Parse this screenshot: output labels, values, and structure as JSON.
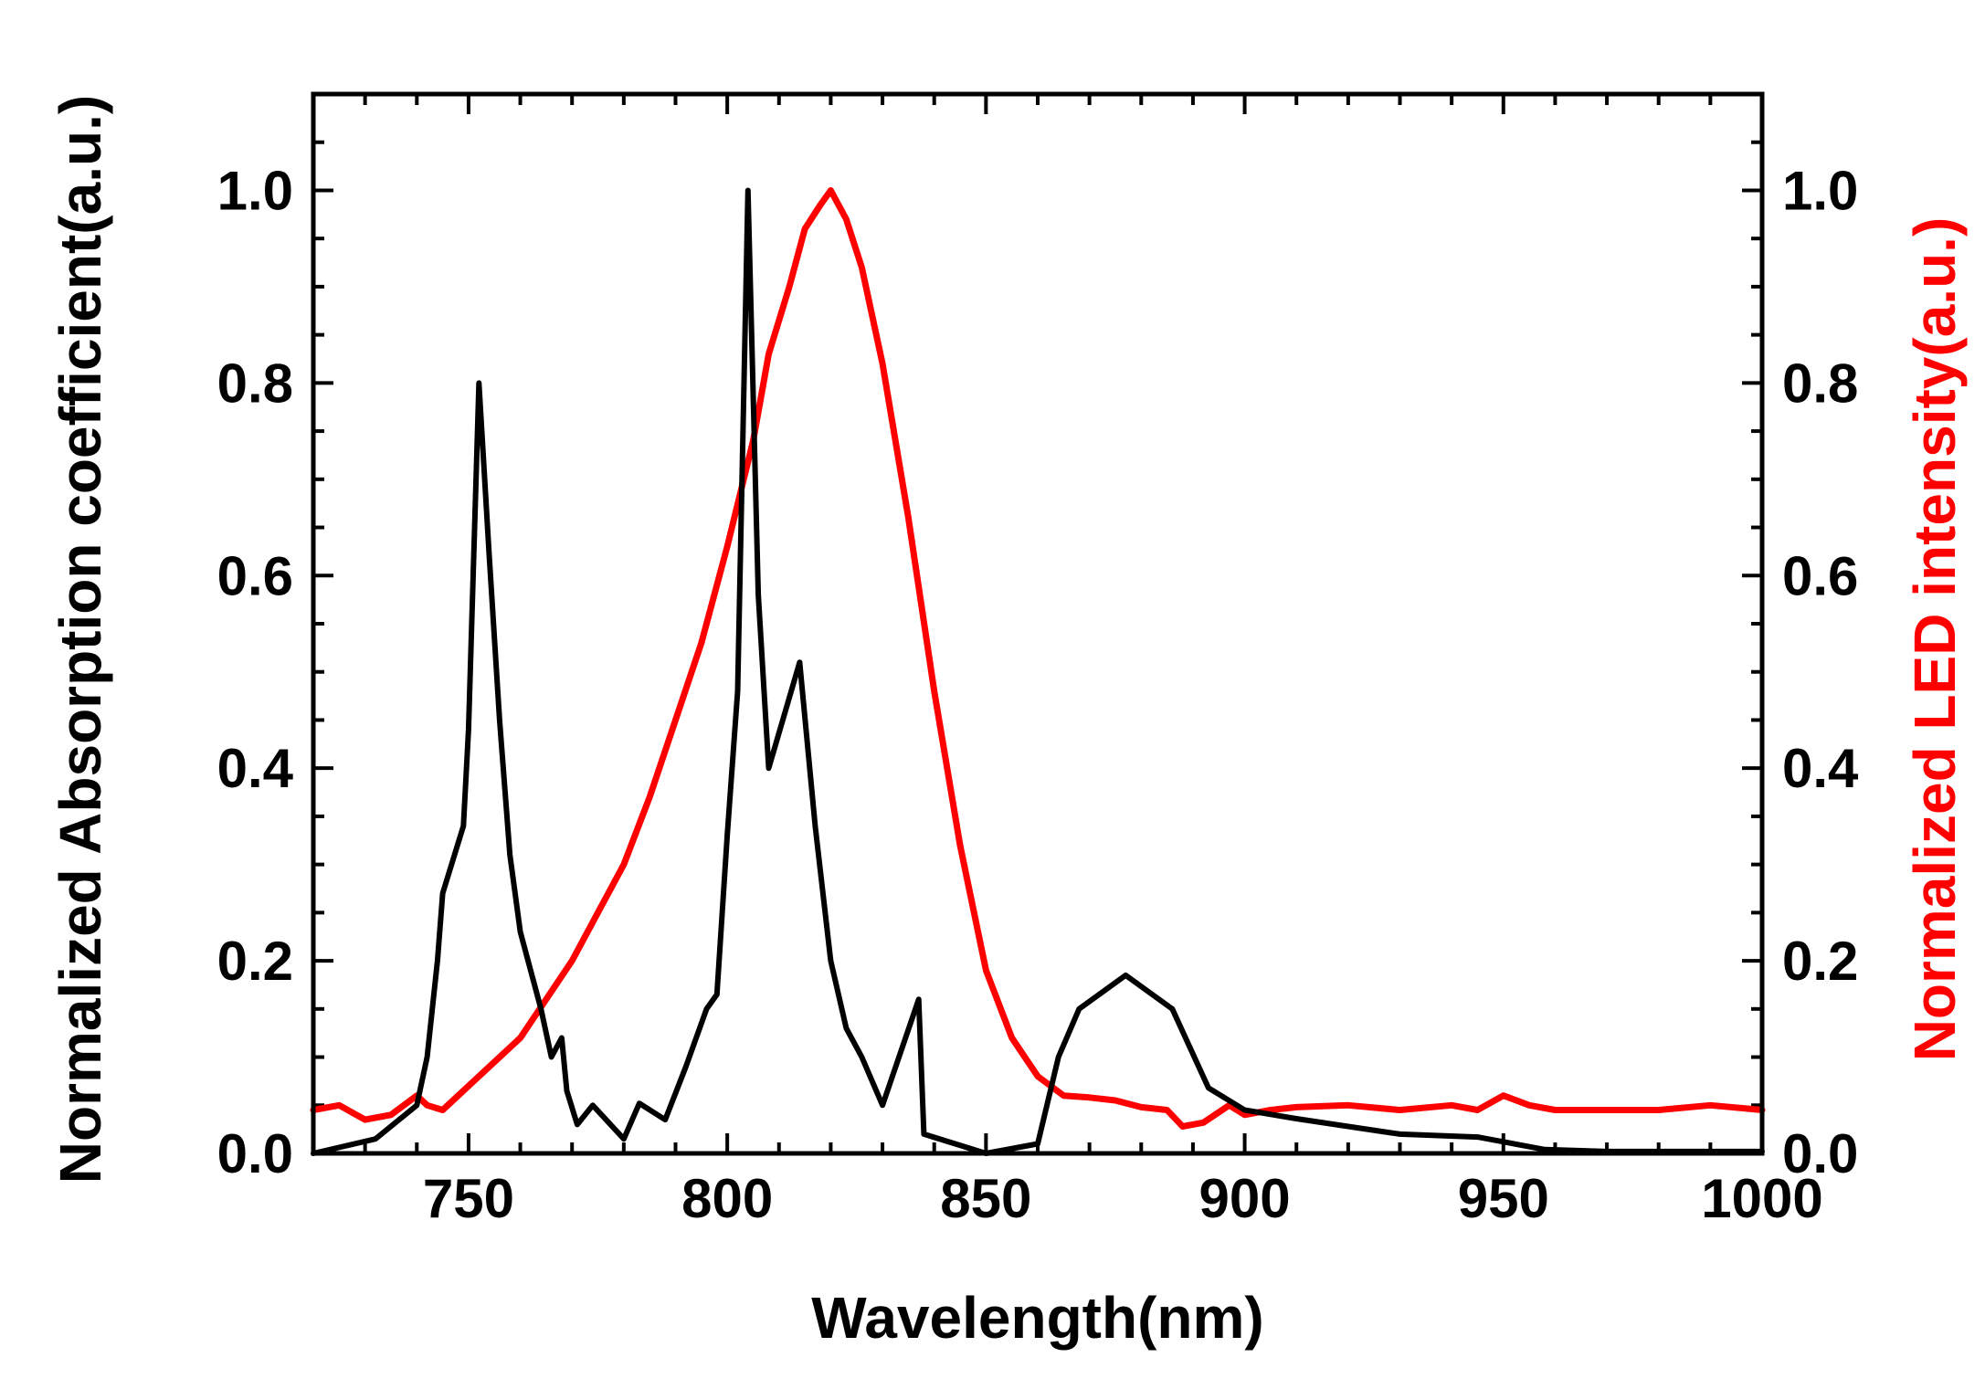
{
  "chart_data": {
    "type": "line",
    "title": "",
    "xlabel": "Wavelength(nm)",
    "ylabel_left": "Normalized  Absorption coefficient(a.u.)",
    "ylabel_right": "Normalized  LED intensity(a.u.)",
    "xlim": [
      720,
      1000
    ],
    "ylim_left": [
      0,
      1.1
    ],
    "ylim_right": [
      0,
      1.1
    ],
    "x_ticks": [
      750,
      800,
      850,
      900,
      950,
      1000
    ],
    "x_tick_labels": [
      "750",
      "800",
      "850",
      "900",
      "950",
      "1000"
    ],
    "y_ticks": [
      0.0,
      0.2,
      0.4,
      0.6,
      0.8,
      1.0
    ],
    "y_tick_labels": [
      "0.0",
      "0.2",
      "0.4",
      "0.6",
      "0.8",
      "1.0"
    ],
    "grid": false,
    "colors": {
      "absorption": "#000000",
      "led": "#ff0000",
      "axes": "#000000"
    },
    "series": [
      {
        "name": "Normalized Absorption coefficient",
        "axis": "left",
        "color": "#000000",
        "points": [
          [
            720,
            0.0
          ],
          [
            732,
            0.015
          ],
          [
            740,
            0.05
          ],
          [
            742,
            0.1
          ],
          [
            744,
            0.2
          ],
          [
            745,
            0.27
          ],
          [
            749,
            0.34
          ],
          [
            750,
            0.44
          ],
          [
            752,
            0.8
          ],
          [
            754,
            0.62
          ],
          [
            756,
            0.45
          ],
          [
            758,
            0.31
          ],
          [
            760,
            0.23
          ],
          [
            764,
            0.15
          ],
          [
            766,
            0.1
          ],
          [
            768,
            0.12
          ],
          [
            769,
            0.065
          ],
          [
            771,
            0.03
          ],
          [
            774,
            0.05
          ],
          [
            780,
            0.015
          ],
          [
            783,
            0.052
          ],
          [
            788,
            0.035
          ],
          [
            792,
            0.09
          ],
          [
            796,
            0.15
          ],
          [
            798,
            0.165
          ],
          [
            800,
            0.33
          ],
          [
            802,
            0.48
          ],
          [
            804,
            1.0
          ],
          [
            806,
            0.58
          ],
          [
            808,
            0.4
          ],
          [
            814,
            0.51
          ],
          [
            817,
            0.34
          ],
          [
            820,
            0.2
          ],
          [
            823,
            0.13
          ],
          [
            826,
            0.1
          ],
          [
            830,
            0.05
          ],
          [
            837,
            0.16
          ],
          [
            838,
            0.02
          ],
          [
            850,
            0.0
          ],
          [
            860,
            0.01
          ],
          [
            864,
            0.1
          ],
          [
            868,
            0.15
          ],
          [
            877,
            0.185
          ],
          [
            886,
            0.15
          ],
          [
            893,
            0.068
          ],
          [
            900,
            0.045
          ],
          [
            910,
            0.036
          ],
          [
            920,
            0.028
          ],
          [
            930,
            0.02
          ],
          [
            945,
            0.017
          ],
          [
            950,
            0.012
          ],
          [
            958,
            0.004
          ],
          [
            970,
            0.002
          ],
          [
            1000,
            0.002
          ]
        ]
      },
      {
        "name": "Normalized LED intensity",
        "axis": "right",
        "color": "#ff0000",
        "points": [
          [
            720,
            0.045
          ],
          [
            725,
            0.05
          ],
          [
            730,
            0.035
          ],
          [
            735,
            0.04
          ],
          [
            740,
            0.06
          ],
          [
            742,
            0.05
          ],
          [
            745,
            0.045
          ],
          [
            750,
            0.07
          ],
          [
            755,
            0.095
          ],
          [
            760,
            0.12
          ],
          [
            765,
            0.16
          ],
          [
            770,
            0.2
          ],
          [
            775,
            0.25
          ],
          [
            780,
            0.3
          ],
          [
            785,
            0.37
          ],
          [
            790,
            0.45
          ],
          [
            795,
            0.53
          ],
          [
            800,
            0.63
          ],
          [
            805,
            0.74
          ],
          [
            808,
            0.83
          ],
          [
            812,
            0.9
          ],
          [
            815,
            0.96
          ],
          [
            818,
            0.985
          ],
          [
            820,
            1.0
          ],
          [
            823,
            0.97
          ],
          [
            826,
            0.92
          ],
          [
            830,
            0.82
          ],
          [
            835,
            0.66
          ],
          [
            840,
            0.48
          ],
          [
            845,
            0.32
          ],
          [
            850,
            0.19
          ],
          [
            855,
            0.12
          ],
          [
            860,
            0.08
          ],
          [
            865,
            0.06
          ],
          [
            870,
            0.058
          ],
          [
            875,
            0.055
          ],
          [
            880,
            0.048
          ],
          [
            885,
            0.045
          ],
          [
            888,
            0.028
          ],
          [
            892,
            0.032
          ],
          [
            897,
            0.05
          ],
          [
            900,
            0.04
          ],
          [
            905,
            0.045
          ],
          [
            910,
            0.048
          ],
          [
            920,
            0.05
          ],
          [
            930,
            0.045
          ],
          [
            940,
            0.05
          ],
          [
            945,
            0.045
          ],
          [
            950,
            0.06
          ],
          [
            955,
            0.05
          ],
          [
            960,
            0.045
          ],
          [
            970,
            0.045
          ],
          [
            980,
            0.045
          ],
          [
            990,
            0.05
          ],
          [
            1000,
            0.045
          ]
        ]
      }
    ]
  }
}
